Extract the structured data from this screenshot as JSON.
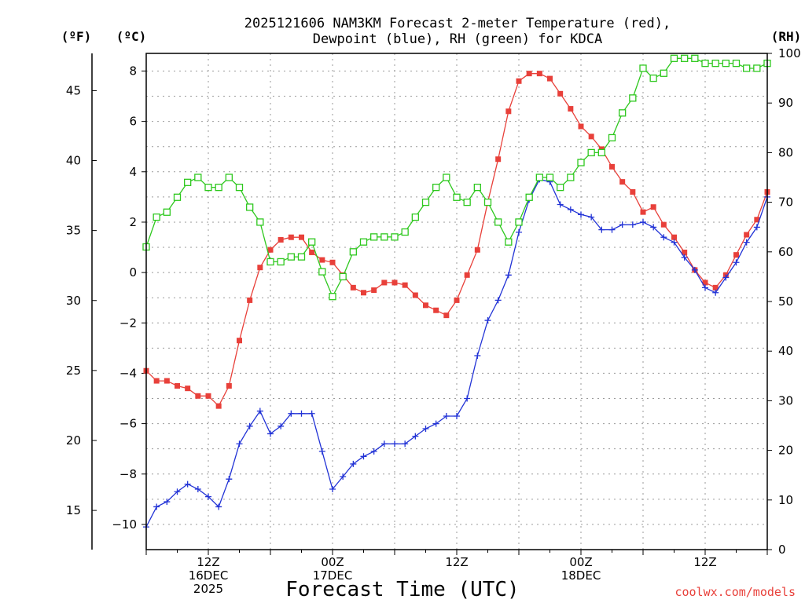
{
  "chart_data": {
    "type": "line",
    "title_line1": "2025121606 NAM3KM Forecast 2-meter Temperature (red),",
    "title_line2": "Dewpoint (blue), RH (green) for KDCA",
    "unit_f": "(ºF)",
    "unit_c": "(ºC)",
    "unit_rh": "(RH)",
    "xlabel": "Forecast Time (UTC)",
    "credit": "coolwx.com/models",
    "xlim": [
      6,
      66
    ],
    "ylim_c": [
      -11,
      8.7
    ],
    "ylim_rh": [
      0,
      100
    ],
    "grid": true,
    "x_ticks": [
      {
        "x": 12,
        "lines": [
          "12Z",
          "16DEC",
          "2025"
        ]
      },
      {
        "x": 24,
        "lines": [
          "00Z",
          "17DEC"
        ]
      },
      {
        "x": 36,
        "lines": [
          "12Z"
        ]
      },
      {
        "x": 48,
        "lines": [
          "00Z",
          "18DEC"
        ]
      },
      {
        "x": 60,
        "lines": [
          "12Z"
        ]
      }
    ],
    "c_ticks": [
      -10,
      -8,
      -6,
      -4,
      -2,
      0,
      2,
      4,
      6,
      8
    ],
    "f_ticks": [
      15,
      20,
      25,
      30,
      35,
      40,
      45
    ],
    "rh_ticks": [
      0,
      10,
      20,
      30,
      40,
      50,
      60,
      70,
      80,
      90,
      100
    ],
    "x": [
      6,
      7,
      8,
      9,
      10,
      11,
      12,
      13,
      14,
      15,
      16,
      17,
      18,
      19,
      20,
      21,
      22,
      23,
      24,
      25,
      26,
      27,
      28,
      29,
      30,
      31,
      32,
      33,
      34,
      35,
      36,
      37,
      38,
      39,
      40,
      41,
      42,
      43,
      44,
      45,
      46,
      47,
      48,
      49,
      50,
      51,
      52,
      53,
      54,
      55,
      56,
      57,
      58,
      59,
      60,
      61,
      62,
      63,
      64,
      65,
      66
    ],
    "series": [
      {
        "name": "Temperature",
        "color": "#e8403a",
        "units": "degC",
        "marker": "filled-square",
        "values": [
          -3.9,
          -4.3,
          -4.3,
          -4.5,
          -4.6,
          -4.9,
          -4.9,
          -5.3,
          -4.5,
          -2.7,
          -1.1,
          0.2,
          0.9,
          1.3,
          1.4,
          1.4,
          0.8,
          0.5,
          0.4,
          -0.1,
          -0.6,
          -0.8,
          -0.7,
          -0.4,
          -0.4,
          -0.5,
          -0.9,
          -1.3,
          -1.5,
          -1.7,
          -1.1,
          -0.1,
          0.9,
          2.8,
          4.5,
          6.4,
          7.6,
          7.9,
          7.9,
          7.7,
          7.1,
          6.5,
          5.8,
          5.4,
          4.9,
          4.2,
          3.6,
          3.2,
          2.4,
          2.6,
          1.9,
          1.4,
          0.8,
          0.1,
          -0.4,
          -0.6,
          -0.1,
          0.7,
          1.5,
          2.1,
          3.2
        ]
      },
      {
        "name": "Dewpoint",
        "color": "#2233d6",
        "units": "degC",
        "marker": "plus",
        "values": [
          -10.1,
          -9.3,
          -9.1,
          -8.7,
          -8.4,
          -8.6,
          -8.9,
          -9.3,
          -8.2,
          -6.8,
          -6.1,
          -5.5,
          -6.4,
          -6.1,
          -5.6,
          -5.6,
          -5.6,
          -7.1,
          -8.6,
          -8.1,
          -7.6,
          -7.3,
          -7.1,
          -6.8,
          -6.8,
          -6.8,
          -6.5,
          -6.2,
          -6.0,
          -5.7,
          -5.7,
          -5.0,
          -3.3,
          -1.9,
          -1.1,
          -0.1,
          1.6,
          2.9,
          3.7,
          3.6,
          2.7,
          2.5,
          2.3,
          2.2,
          1.7,
          1.7,
          1.9,
          1.9,
          2.0,
          1.8,
          1.4,
          1.2,
          0.6,
          0.1,
          -0.6,
          -0.8,
          -0.2,
          0.4,
          1.2,
          1.8,
          3.0
        ]
      },
      {
        "name": "RH",
        "color": "#2ec81e",
        "units": "percent",
        "marker": "open-square",
        "values": [
          61,
          67,
          68,
          71,
          74,
          75,
          73,
          73,
          75,
          73,
          69,
          66,
          58,
          58,
          59,
          59,
          62,
          56,
          51,
          55,
          60,
          62,
          63,
          63,
          63,
          64,
          67,
          70,
          73,
          75,
          71,
          70,
          73,
          70,
          66,
          62,
          66,
          71,
          75,
          75,
          73,
          75,
          78,
          80,
          80,
          83,
          88,
          91,
          97,
          95,
          96,
          99,
          99,
          99,
          98,
          98,
          98,
          98,
          97,
          97,
          98
        ]
      }
    ]
  }
}
